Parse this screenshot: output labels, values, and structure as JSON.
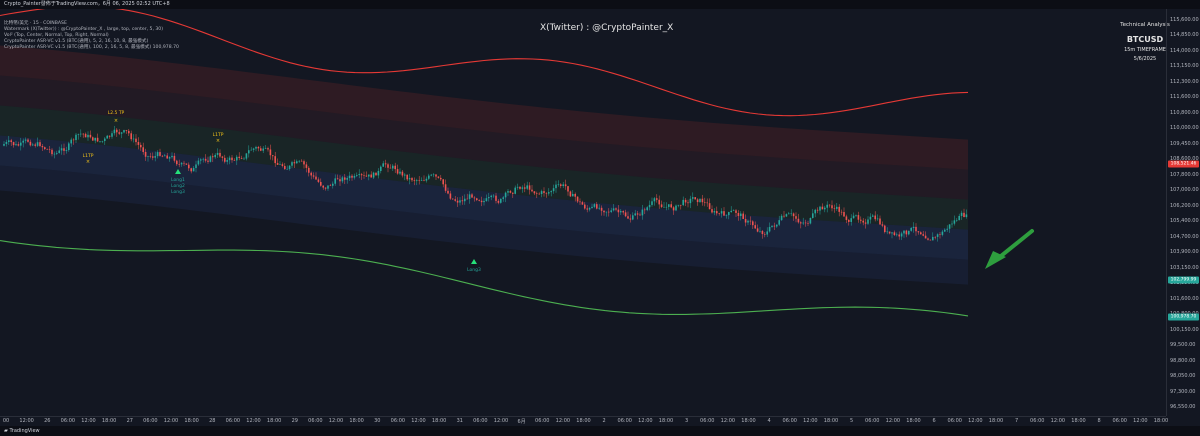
{
  "header": {
    "title": "Crypto_Painter發佈于TradingView.com，6月 06, 2025 02:52 UTC+8"
  },
  "indicators": [
    "比特幣/美元 · 15 · COINBASE",
    "Watermark (X(Twitter)) : @CryptoPainter_X , large, top, center, 5, 30)",
    "Vol² (Top, Center, Normal, Top, Right, Normal)",
    "CryptoPainter ASR-VC v1.5 (BTC(通用), 5, 2, 16, 10, 8, 最強模式)",
    "CryptoPainter ASR-VC v1.5 (BTC(通用), 100, 2, 16, 5, 8, 最強模式) 100,978.70"
  ],
  "watermark": "X(Twitter) : @CryptoPainter_X",
  "technical_panel": {
    "title": "Technical Analysis",
    "symbol": "BTCUSD",
    "timeframe": "15m TIMEFRAME",
    "date": "5/6/2025"
  },
  "price_axis": {
    "labels": [
      "115,600.00",
      "114,850.00",
      "114,000.00",
      "113,150.00",
      "112,300.00",
      "111,600.00",
      "110,800.00",
      "110,000.00",
      "109,450.00",
      "108,600.00",
      "107,800.00",
      "107,000.00",
      "106,200.00",
      "105,400.00",
      "104,700.00",
      "103,900.00",
      "103,150.00",
      "102,350.00",
      "101,600.00",
      "100,800.00",
      "100,150.00",
      "99,500.00",
      "98,800.00",
      "98,050.00",
      "97,300.00",
      "96,550.00"
    ],
    "tags": [
      {
        "text": "108,521.46",
        "value": 108521.46,
        "color": "#e53935"
      },
      {
        "text": "102,799.99",
        "value": 102799.99,
        "color": "#26a69a"
      },
      {
        "text": "100,978.70",
        "value": 100978.7,
        "color": "#26a69a"
      }
    ]
  },
  "time_axis": {
    "labels": [
      "00",
      "12:00",
      "26",
      "06:00",
      "12:00",
      "18:00",
      "27",
      "06:00",
      "12:00",
      "18:00",
      "28",
      "06:00",
      "12:00",
      "18:00",
      "29",
      "06:00",
      "12:00",
      "18:00",
      "30",
      "06:00",
      "12:00",
      "18:00",
      "31",
      "06:00",
      "12:00",
      "6月",
      "06:00",
      "12:00",
      "18:00",
      "2",
      "06:00",
      "12:00",
      "18:00",
      "3",
      "06:00",
      "12:00",
      "18:00",
      "4",
      "06:00",
      "12:00",
      "18:00",
      "5",
      "06:00",
      "12:00",
      "18:00",
      "6",
      "06:00",
      "12:00",
      "18:00",
      "7",
      "06:00",
      "12:00",
      "18:00",
      "8",
      "06:00",
      "12:00",
      "18:00"
    ]
  },
  "signals": [
    {
      "text": "L1TP",
      "color": "#f5c518"
    },
    {
      "text": "L2.5 TP",
      "color": "#f5c518"
    },
    {
      "text": "L1TP",
      "color": "#f5c518"
    },
    {
      "text": "Long1",
      "color": "#26a69a"
    },
    {
      "text": "Long2",
      "color": "#26a69a"
    },
    {
      "text": "Long3",
      "color": "#26a69a"
    },
    {
      "text": "Long3",
      "color": "#26a69a"
    }
  ],
  "footer": {
    "brand": "TradingView"
  },
  "colors": {
    "background": "#131722",
    "upper_band": "#e53935",
    "lower_band": "#4caf50",
    "arrow": "#2e9e3e"
  }
}
